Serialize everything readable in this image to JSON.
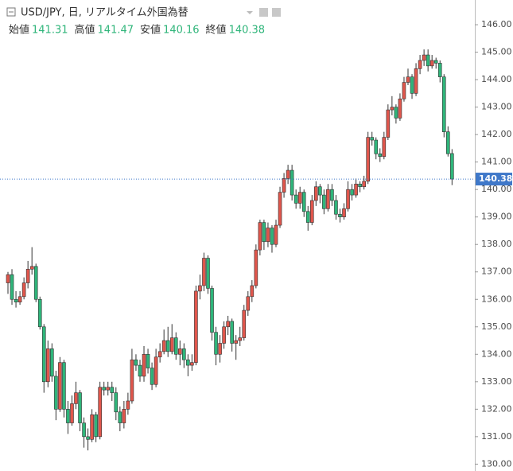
{
  "chart_data": {
    "type": "candlestick",
    "title": "USD/JPY, 日, リアルタイム外国為替",
    "ohlc_labels": [
      "始値",
      "高値",
      "安値",
      "終値"
    ],
    "up_color": "#e0564c",
    "down_color": "#2fb57a",
    "price_line_color": "#3f78c9",
    "ylim": [
      129.75,
      146.9
    ],
    "yticks": [
      {
        "value": 130,
        "label": "130.00"
      },
      {
        "value": 131,
        "label": "131.00"
      },
      {
        "value": 132,
        "label": "132.00"
      },
      {
        "value": 133,
        "label": "133.00"
      },
      {
        "value": 134,
        "label": "134.00"
      },
      {
        "value": 135,
        "label": "135.00"
      },
      {
        "value": 136,
        "label": "136.00"
      },
      {
        "value": 137,
        "label": "137.00"
      },
      {
        "value": 138,
        "label": "138.00"
      },
      {
        "value": 139,
        "label": "139.00"
      },
      {
        "value": 140,
        "label": "140.00"
      },
      {
        "value": 141,
        "label": "141.00"
      },
      {
        "value": 142,
        "label": "142.00"
      },
      {
        "value": 143,
        "label": "143.00"
      },
      {
        "value": 144,
        "label": "144.00"
      },
      {
        "value": 145,
        "label": "145.00"
      },
      {
        "value": 146,
        "label": "146.00"
      }
    ],
    "ohlc": [
      [
        136.6,
        137.0,
        136.2,
        136.9
      ],
      [
        136.9,
        137.1,
        135.8,
        136.0
      ],
      [
        136.0,
        136.3,
        135.7,
        135.9
      ],
      [
        135.9,
        136.3,
        135.8,
        136.1
      ],
      [
        136.1,
        136.8,
        136.0,
        136.6
      ],
      [
        136.6,
        137.4,
        136.4,
        137.1
      ],
      [
        137.1,
        137.9,
        136.9,
        137.2
      ],
      [
        137.2,
        137.3,
        135.9,
        136.0
      ],
      [
        136.0,
        136.1,
        134.9,
        135.0
      ],
      [
        135.0,
        135.1,
        132.6,
        133.0
      ],
      [
        133.0,
        134.5,
        132.8,
        134.2
      ],
      [
        134.2,
        134.4,
        133.0,
        133.2
      ],
      [
        133.2,
        133.4,
        131.6,
        132.0
      ],
      [
        132.0,
        133.9,
        131.9,
        133.7
      ],
      [
        133.7,
        133.8,
        131.7,
        132.0
      ],
      [
        132.0,
        132.3,
        131.1,
        131.5
      ],
      [
        131.5,
        132.5,
        131.4,
        132.2
      ],
      [
        132.2,
        133.0,
        132.0,
        132.6
      ],
      [
        132.6,
        132.7,
        131.2,
        131.5
      ],
      [
        131.5,
        131.7,
        130.6,
        131.0
      ],
      [
        131.0,
        131.3,
        130.5,
        130.9
      ],
      [
        130.9,
        132.0,
        130.8,
        131.8
      ],
      [
        131.8,
        131.9,
        130.8,
        131.0
      ],
      [
        131.0,
        133.0,
        130.9,
        132.8
      ],
      [
        132.8,
        133.0,
        132.5,
        132.7
      ],
      [
        132.7,
        133.0,
        132.5,
        132.8
      ],
      [
        132.8,
        133.0,
        132.3,
        132.6
      ],
      [
        132.6,
        132.8,
        131.6,
        131.9
      ],
      [
        131.9,
        132.1,
        131.2,
        131.5
      ],
      [
        131.5,
        132.3,
        131.3,
        132.0
      ],
      [
        132.0,
        132.6,
        131.8,
        132.3
      ],
      [
        132.3,
        134.2,
        132.2,
        133.8
      ],
      [
        133.8,
        134.0,
        133.4,
        133.6
      ],
      [
        133.6,
        133.8,
        133.0,
        133.2
      ],
      [
        133.2,
        134.3,
        133.0,
        134.0
      ],
      [
        134.0,
        134.2,
        133.3,
        133.5
      ],
      [
        133.5,
        133.7,
        132.7,
        132.9
      ],
      [
        132.9,
        134.2,
        132.8,
        133.9
      ],
      [
        133.9,
        134.4,
        133.7,
        134.1
      ],
      [
        134.1,
        134.9,
        134.0,
        134.5
      ],
      [
        134.5,
        135.0,
        133.9,
        134.1
      ],
      [
        134.1,
        135.1,
        134.0,
        134.6
      ],
      [
        134.6,
        134.8,
        133.8,
        134.0
      ],
      [
        134.0,
        134.5,
        133.6,
        134.2
      ],
      [
        134.2,
        134.4,
        133.5,
        133.8
      ],
      [
        133.8,
        134.0,
        133.2,
        133.6
      ],
      [
        133.6,
        134.0,
        133.4,
        133.7
      ],
      [
        133.7,
        136.5,
        133.6,
        136.3
      ],
      [
        136.3,
        136.9,
        136.0,
        136.5
      ],
      [
        136.5,
        137.7,
        136.3,
        137.5
      ],
      [
        137.5,
        137.6,
        136.2,
        136.4
      ],
      [
        136.4,
        136.5,
        134.5,
        134.8
      ],
      [
        134.8,
        135.0,
        133.6,
        134.0
      ],
      [
        134.0,
        134.7,
        133.7,
        134.4
      ],
      [
        134.4,
        135.2,
        134.2,
        135.0
      ],
      [
        135.0,
        135.4,
        134.7,
        135.2
      ],
      [
        135.2,
        135.3,
        134.1,
        134.4
      ],
      [
        134.4,
        134.7,
        133.8,
        134.5
      ],
      [
        134.5,
        135.0,
        134.3,
        134.6
      ],
      [
        134.6,
        135.8,
        134.5,
        135.6
      ],
      [
        135.6,
        136.3,
        135.4,
        136.1
      ],
      [
        136.1,
        136.7,
        135.9,
        136.5
      ],
      [
        136.5,
        138.0,
        136.4,
        137.8
      ],
      [
        137.8,
        138.9,
        137.6,
        138.8
      ],
      [
        138.8,
        138.9,
        137.8,
        138.1
      ],
      [
        138.1,
        138.8,
        137.9,
        138.6
      ],
      [
        138.6,
        138.7,
        137.7,
        138.0
      ],
      [
        138.0,
        138.9,
        137.9,
        138.7
      ],
      [
        138.7,
        140.1,
        138.6,
        139.9
      ],
      [
        139.9,
        140.6,
        139.7,
        140.4
      ],
      [
        140.4,
        140.9,
        140.2,
        140.7
      ],
      [
        140.7,
        140.9,
        139.6,
        139.8
      ],
      [
        139.8,
        140.0,
        139.3,
        139.5
      ],
      [
        139.5,
        140.1,
        139.3,
        139.9
      ],
      [
        139.9,
        140.0,
        139.0,
        139.2
      ],
      [
        139.2,
        139.4,
        138.5,
        138.8
      ],
      [
        138.8,
        139.8,
        138.7,
        139.6
      ],
      [
        139.6,
        140.3,
        139.4,
        140.1
      ],
      [
        140.1,
        140.2,
        139.5,
        139.8
      ],
      [
        139.8,
        140.0,
        139.1,
        139.3
      ],
      [
        139.3,
        140.2,
        139.2,
        140.0
      ],
      [
        140.0,
        140.2,
        139.4,
        139.6
      ],
      [
        139.6,
        139.8,
        138.9,
        139.1
      ],
      [
        139.1,
        139.3,
        138.8,
        139.0
      ],
      [
        139.0,
        139.5,
        138.9,
        139.3
      ],
      [
        139.3,
        140.3,
        139.2,
        140.0
      ],
      [
        140.0,
        140.2,
        139.6,
        139.8
      ],
      [
        139.8,
        140.4,
        139.7,
        140.2
      ],
      [
        140.2,
        140.3,
        139.9,
        140.1
      ],
      [
        140.1,
        140.5,
        140.0,
        140.3
      ],
      [
        140.3,
        142.1,
        140.2,
        141.9
      ],
      [
        141.9,
        142.1,
        141.6,
        141.8
      ],
      [
        141.8,
        141.9,
        141.1,
        141.3
      ],
      [
        141.3,
        141.5,
        141.0,
        141.2
      ],
      [
        141.2,
        142.1,
        141.1,
        141.9
      ],
      [
        141.9,
        143.1,
        141.8,
        142.9
      ],
      [
        142.9,
        143.4,
        142.7,
        143.0
      ],
      [
        143.0,
        143.1,
        142.4,
        142.6
      ],
      [
        142.6,
        143.5,
        142.5,
        143.3
      ],
      [
        143.3,
        144.1,
        143.2,
        143.9
      ],
      [
        143.9,
        144.4,
        143.8,
        144.1
      ],
      [
        144.1,
        144.2,
        143.3,
        143.5
      ],
      [
        143.5,
        144.6,
        143.4,
        144.4
      ],
      [
        144.4,
        144.9,
        144.2,
        144.7
      ],
      [
        144.7,
        145.1,
        144.5,
        144.9
      ],
      [
        144.9,
        145.1,
        144.3,
        144.5
      ],
      [
        144.5,
        144.9,
        144.4,
        144.7
      ],
      [
        144.7,
        144.8,
        144.4,
        144.6
      ],
      [
        144.6,
        144.7,
        143.9,
        144.1
      ],
      [
        144.1,
        144.2,
        141.9,
        142.1
      ],
      [
        142.1,
        142.3,
        141.2,
        141.3
      ],
      [
        141.31,
        141.47,
        140.16,
        140.38
      ]
    ]
  }
}
